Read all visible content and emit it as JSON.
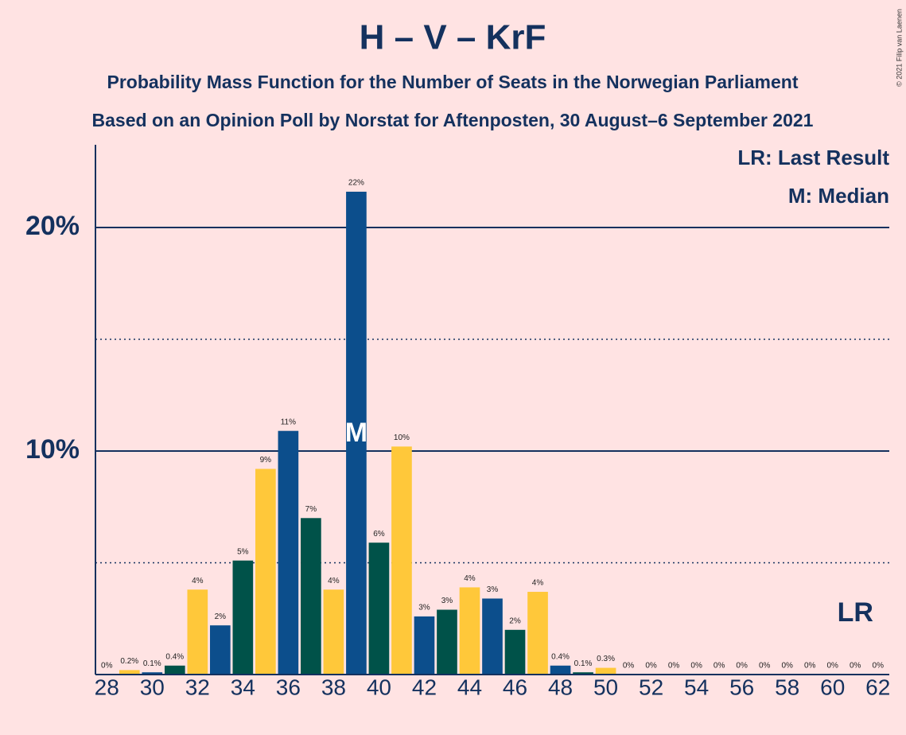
{
  "chart_data": {
    "type": "bar",
    "title": "H – V – KrF",
    "subtitle": "Probability Mass Function for the Number of Seats in the Norwegian Parliament",
    "subtitle2": "Based on an Opinion Poll by Norstat for Aftenposten, 30 August–6 September 2021",
    "x": [
      28,
      29,
      30,
      31,
      32,
      33,
      34,
      35,
      36,
      37,
      38,
      39,
      40,
      41,
      42,
      43,
      44,
      45,
      46,
      47,
      48,
      49,
      50,
      51,
      52,
      53,
      54,
      55,
      56,
      57,
      58,
      59,
      60,
      61,
      62
    ],
    "values": [
      0,
      0.2,
      0.1,
      0.4,
      3.8,
      2.2,
      5.1,
      9.2,
      10.9,
      7.0,
      3.8,
      21.6,
      5.9,
      10.2,
      2.6,
      2.9,
      3.9,
      3.4,
      2.0,
      3.7,
      0.4,
      0.1,
      0.3,
      0,
      0,
      0,
      0,
      0,
      0,
      0,
      0,
      0,
      0,
      0,
      0
    ],
    "value_labels": [
      "0%",
      "0.2%",
      "0.1%",
      "0.4%",
      "4%",
      "2%",
      "5%",
      "9%",
      "11%",
      "7%",
      "4%",
      "22%",
      "6%",
      "10%",
      "3%",
      "3%",
      "4%",
      "3%",
      "2%",
      "4%",
      "0.4%",
      "0.1%",
      "0.3%",
      "0%",
      "0%",
      "0%",
      "0%",
      "0%",
      "0%",
      "0%",
      "0%",
      "0%",
      "0%",
      "0%",
      "0%"
    ],
    "colors": [
      "#005249",
      "#ffc83a",
      "#0c4e8c",
      "#005249",
      "#ffc83a",
      "#0c4e8c",
      "#005249",
      "#ffc83a",
      "#0c4e8c",
      "#005249",
      "#ffc83a",
      "#0c4e8c",
      "#005249",
      "#ffc83a",
      "#0c4e8c",
      "#005249",
      "#ffc83a",
      "#0c4e8c",
      "#005249",
      "#ffc83a",
      "#0c4e8c",
      "#005249",
      "#ffc83a",
      "#0c4e8c",
      "#005249",
      "#ffc83a",
      "#0c4e8c",
      "#005249",
      "#ffc83a",
      "#0c4e8c",
      "#005249",
      "#ffc83a",
      "#0c4e8c",
      "#005249",
      "#ffc83a"
    ],
    "xlim": [
      27.5,
      62.5
    ],
    "xticks": [
      28,
      30,
      32,
      34,
      36,
      38,
      40,
      42,
      44,
      46,
      48,
      50,
      52,
      54,
      56,
      58,
      60,
      62
    ],
    "ylim": [
      0,
      23.7
    ],
    "yticks": [
      {
        "value": 10,
        "label": "10%"
      },
      {
        "value": 20,
        "label": "20%"
      }
    ],
    "yminor": [
      5,
      15
    ],
    "median": {
      "x": 39,
      "label": "M"
    },
    "last_result": {
      "x": 61,
      "label": "LR"
    },
    "legend": [
      "LR: Last Result",
      "M: Median"
    ],
    "copyright": "© 2021 Filip van Laenen"
  }
}
